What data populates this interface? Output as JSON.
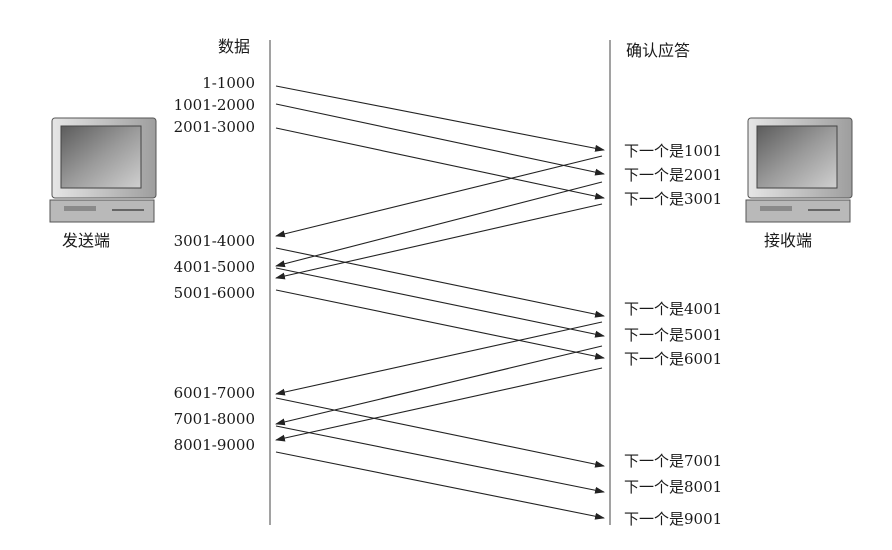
{
  "headers": {
    "sender_column": "数据",
    "receiver_column": "确认应答"
  },
  "hosts": {
    "sender": "发送端",
    "receiver": "接收端"
  },
  "data_segments": [
    "1-1000",
    "1001-2000",
    "2001-3000",
    "3001-4000",
    "4001-5000",
    "5001-6000",
    "6001-7000",
    "7001-8000",
    "8001-9000"
  ],
  "acks": [
    "下一个是1001",
    "下一个是2001",
    "下一个是3001",
    "下一个是4001",
    "下一个是5001",
    "下一个是6001",
    "下一个是7001",
    "下一个是8001",
    "下一个是9001"
  ],
  "colors": {
    "line": "#222222",
    "text": "#1a1a1a",
    "monitor_frame": "#bdbdbd",
    "monitor_screen": "#7a7a7a"
  }
}
